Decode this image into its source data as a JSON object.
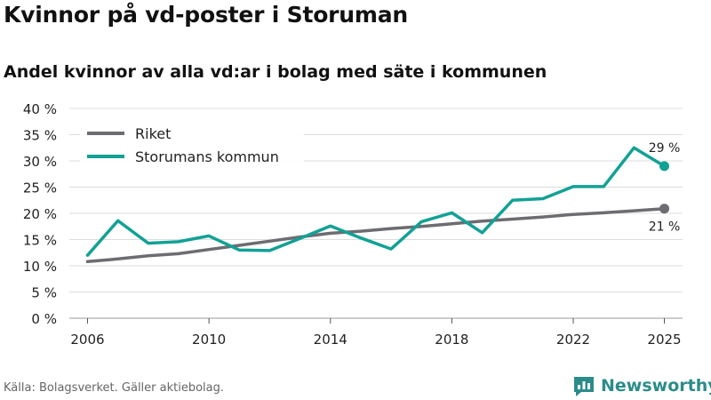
{
  "page": {
    "title": "Kvinnor på vd-poster i Storuman",
    "subtitle": "Andel kvinnor av alla vd:ar i bolag med säte i kommunen",
    "source": "Källa: Bolagsverket. Gäller aktiebolag.",
    "brand": "Newsworthy"
  },
  "colors": {
    "riket": "#6d6c71",
    "storuman": "#12a195",
    "grid": "#dddddd",
    "brand": "#2c8c8a"
  },
  "chart_data": {
    "type": "line",
    "title": "Kvinnor på vd-poster i Storuman",
    "subtitle": "Andel kvinnor av alla vd:ar i bolag med säte i kommunen",
    "xlabel": "",
    "ylabel": "",
    "xlim": [
      2005.4,
      2025.6
    ],
    "ylim": [
      0,
      40
    ],
    "x_ticks": [
      2006,
      2010,
      2014,
      2018,
      2022,
      2025
    ],
    "x_tick_labels": [
      "2006",
      "2010",
      "2014",
      "2018",
      "2022",
      "2025"
    ],
    "y_ticks": [
      0,
      5,
      10,
      15,
      20,
      25,
      30,
      35,
      40
    ],
    "y_tick_labels": [
      "0 %",
      "5 %",
      "10 %",
      "15 %",
      "20 %",
      "25 %",
      "30 %",
      "35 %",
      "40 %"
    ],
    "grid": true,
    "legend_position": "top-left",
    "x": [
      2006,
      2007,
      2008,
      2009,
      2010,
      2011,
      2012,
      2013,
      2014,
      2015,
      2016,
      2017,
      2018,
      2019,
      2020,
      2021,
      2022,
      2023,
      2024,
      2025
    ],
    "series": [
      {
        "name": "Riket",
        "color": "#6d6c71",
        "values": [
          10.8,
          11.3,
          11.9,
          12.3,
          13.1,
          13.9,
          14.7,
          15.5,
          16.2,
          16.6,
          17.1,
          17.5,
          18.0,
          18.5,
          18.9,
          19.3,
          19.8,
          20.1,
          20.5,
          20.9
        ],
        "end_label": "21 %"
      },
      {
        "name": "Storumans kommun",
        "color": "#12a195",
        "values": [
          12.0,
          18.6,
          14.3,
          14.6,
          15.7,
          13.0,
          12.9,
          15.2,
          17.6,
          15.3,
          13.2,
          18.4,
          20.1,
          16.3,
          22.5,
          22.8,
          25.1,
          25.1,
          32.5,
          29.0
        ],
        "end_label": "29 %"
      }
    ]
  }
}
